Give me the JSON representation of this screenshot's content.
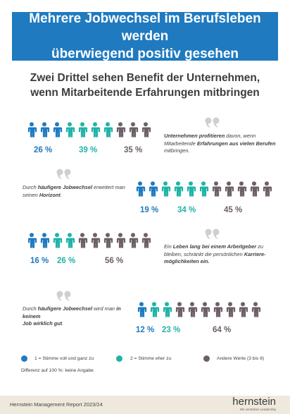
{
  "title_line1": "Mehrere Jobwechsel im Berufsleben werden",
  "title_line2": "überwiegend positiv gesehen",
  "subtitle_line1": "Zwei Drittel sehen Benefit der Unternehmen,",
  "subtitle_line2": "wenn Mitarbeitende Erfahrungen mitbringen",
  "colors": {
    "blue": "#1f7ac0",
    "teal": "#20b3a7",
    "gray": "#6d5f67"
  },
  "rows": [
    {
      "pct1": "26 %",
      "pct2": "39 %",
      "pct3": "35 %",
      "icons": [
        "b",
        "b",
        "b",
        "t",
        "t",
        "t",
        "t",
        "g",
        "g",
        "g"
      ],
      "statement": [
        "Unternehmen profitieren",
        " davon, wenn",
        "Mitarbeitende ",
        "Erfahrungen aus vielen Berufen",
        "",
        "mitbringen."
      ]
    },
    {
      "pct1": "19 %",
      "pct2": "34 %",
      "pct3": "45 %",
      "icons": [
        "b",
        "b",
        "t",
        "t",
        "t",
        "t",
        "g",
        "g",
        "g",
        "g",
        "g"
      ],
      "statement": [
        "Durch ",
        "häufigere Jobwechsel",
        " erweitert man",
        "seinen ",
        "Horizont",
        "."
      ]
    },
    {
      "pct1": "16 %",
      "pct2": "26 %",
      "pct3": "56 %",
      "icons": [
        "b",
        "b",
        "t",
        "t",
        "g",
        "g",
        "g",
        "g",
        "g",
        "g"
      ],
      "statement": [
        "Ein ",
        "Leben lang bei einem Arbeitgeber",
        " zu",
        "bleiben, schränkt die persönlichen ",
        "Karriere-",
        "möglichkeiten ein."
      ]
    },
    {
      "pct1": "12 %",
      "pct2": "23 %",
      "pct3": "64 %",
      "icons": [
        "b",
        "t",
        "t",
        "g",
        "g",
        "g",
        "g",
        "g",
        "g",
        "g"
      ],
      "statement": [
        "Durch ",
        "häufigere Jobwechsel",
        " wird man ",
        "in keinem",
        "Job wirklich gut",
        "."
      ]
    }
  ],
  "legend": {
    "item1": "1 = Stimme voll und ganz zu",
    "item2": "2 = Stimme eher zu",
    "item3": "Andere Werte (3 bis 6)",
    "note": "Differenz auf 100 %: keine Angabe"
  },
  "footer": {
    "report": "Hernstein Management Report 2023/24",
    "logo": "hernstein",
    "logo_sub": "Wir verstehen Leadership"
  }
}
